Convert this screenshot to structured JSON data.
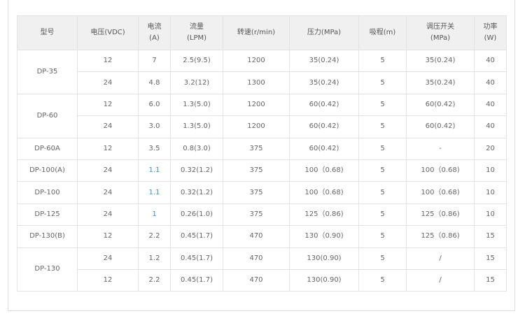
{
  "headers": [
    "型号",
    "电压(VDC)",
    "电流\n(A)",
    "流量\n(LPM)",
    "转速(r/min)",
    "压力(MPa)",
    "吸程(m)",
    "调压开关\n(MPa)",
    "功率\n(W)"
  ],
  "rows": [
    {
      "model": "DP-35",
      "span": 2,
      "cells": [
        "12",
        "7",
        "2.5(9.5)",
        "1200",
        "35(0.24)",
        "5",
        "35(0.24)",
        "40"
      ]
    },
    {
      "cells": [
        "24",
        "4.8",
        "3.2(12)",
        "1300",
        "35(0.24)",
        "5",
        "35(0.24)",
        "40"
      ]
    },
    {
      "model": "DP-60",
      "span": 2,
      "cells": [
        "12",
        "6.0",
        "1.3(5.0)",
        "1200",
        "60(0.42)",
        "5",
        "60(0.42)",
        "40"
      ]
    },
    {
      "cells": [
        "24",
        "3.0",
        "1.3(5.0)",
        "1200",
        "60(0.42)",
        "5",
        "60(0.42)",
        "40"
      ]
    },
    {
      "model": "DP-60A",
      "span": 1,
      "cells": [
        "12",
        "3.5",
        "0.8(3.0)",
        "375",
        "60(0.42)",
        "5",
        "-",
        "20"
      ]
    },
    {
      "model": "DP-100(A)",
      "span": 1,
      "cells": [
        "24",
        "1.1",
        "0.32(1.2)",
        "375",
        "100（0.68)",
        "5",
        "100（0.68)",
        "10"
      ],
      "blue": 1
    },
    {
      "model": "DP-100",
      "span": 1,
      "cells": [
        "24",
        "1.1",
        "0.32(1.2)",
        "375",
        "100（0.68)",
        "5",
        "100（0.68)",
        "10"
      ],
      "blue": 1
    },
    {
      "model": "DP-125",
      "span": 1,
      "cells": [
        "24",
        "1",
        "0.26(1.0)",
        "375",
        "125（0.86)",
        "5",
        "125（0.86)",
        "10"
      ],
      "blue": 1
    },
    {
      "model": "DP-130(B)",
      "span": 1,
      "cells": [
        "12",
        "2.2",
        "0.45(1.7)",
        "470",
        "130（0.90)",
        "5",
        "125（0.86)",
        "15"
      ]
    },
    {
      "model": "DP-130",
      "span": 2,
      "cells": [
        "24",
        "1.2",
        "0.45(1.7)",
        "470",
        "130(0.90)",
        "5",
        "/",
        "15"
      ]
    },
    {
      "cells": [
        "12",
        "2.2",
        "0.45(1.7)",
        "470",
        "130(0.90)",
        "5",
        "/",
        "15"
      ]
    }
  ],
  "colors": {
    "highlight_text": "#3d8fd8",
    "header_bg": "#f0f0f0"
  }
}
